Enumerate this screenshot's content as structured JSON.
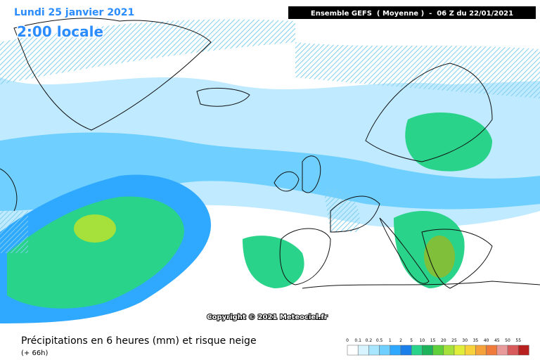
{
  "header": {
    "date": "Lundi 25 janvier 2021",
    "time": "2:00 locale",
    "run": "Ensemble GEFS  ( Moyenne )  -  06 Z du 22/01/2021",
    "copyright": "Copyright © 2021 Meteociel.fr"
  },
  "footer": {
    "title": "Précipitations en 6 heures (mm) et risque neige",
    "lead": "(+ 66h)"
  },
  "legend": {
    "items": [
      {
        "label": 0,
        "color": "#ffffff"
      },
      {
        "label": 0.1,
        "color": "#d8f4ff"
      },
      {
        "label": 0.2,
        "color": "#a8e6ff"
      },
      {
        "label": 0.5,
        "color": "#6fd0ff"
      },
      {
        "label": 1,
        "color": "#2fa8ff"
      },
      {
        "label": 2,
        "color": "#1a7fe8"
      },
      {
        "label": 5,
        "color": "#2ad38a"
      },
      {
        "label": 10,
        "color": "#1db35a"
      },
      {
        "label": 15,
        "color": "#5fcf3a"
      },
      {
        "label": 20,
        "color": "#a6e03a"
      },
      {
        "label": 25,
        "color": "#e0ee3a"
      },
      {
        "label": 30,
        "color": "#f7d23a"
      },
      {
        "label": 35,
        "color": "#f5a23a"
      },
      {
        "label": 40,
        "color": "#f07a3a"
      },
      {
        "label": 45,
        "color": "#e89a9a"
      },
      {
        "label": 50,
        "color": "#d85a5a"
      },
      {
        "label": 55,
        "color": "#b82020"
      }
    ]
  }
}
